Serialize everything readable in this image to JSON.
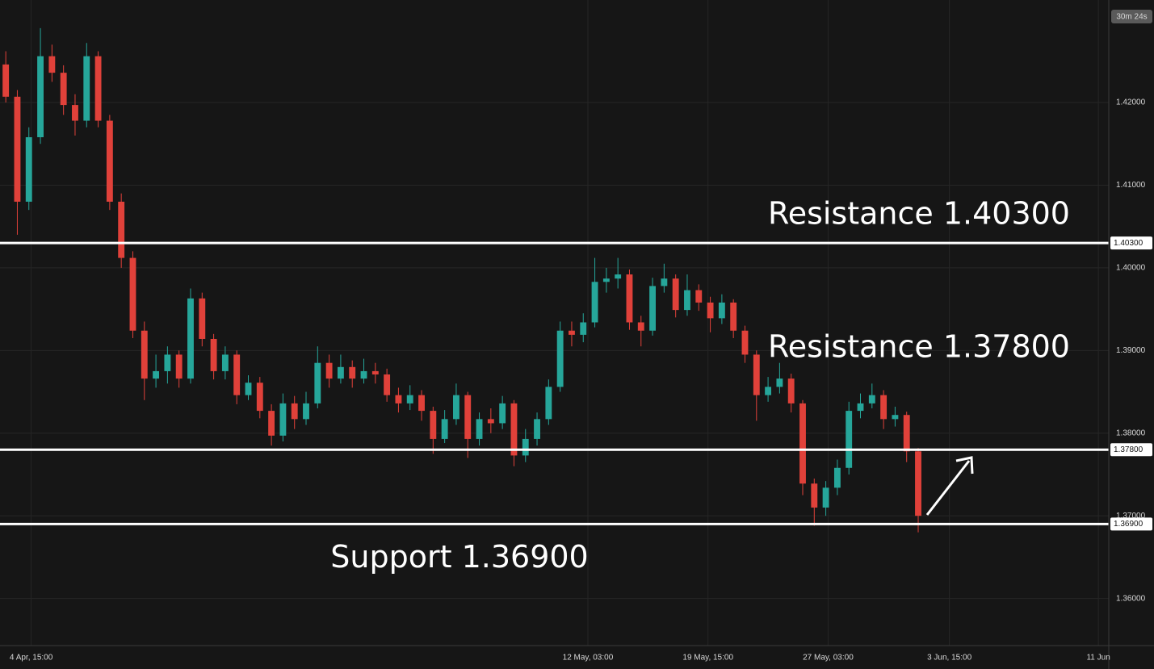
{
  "chart_data": {
    "type": "candlestick",
    "countdown": "30m 24s",
    "up_color": "#26a69a",
    "down_color": "#e0413a",
    "grid": true,
    "ylim": [
      1.3543,
      1.4324
    ],
    "yticks": [
      {
        "value": 1.36,
        "label": "1.36000"
      },
      {
        "value": 1.37,
        "label": "1.37000"
      },
      {
        "value": 1.38,
        "label": "1.38000"
      },
      {
        "value": 1.39,
        "label": "1.39000"
      },
      {
        "value": 1.4,
        "label": "1.40000"
      },
      {
        "value": 1.41,
        "label": "1.41000"
      },
      {
        "value": 1.42,
        "label": "1.42000"
      }
    ],
    "xlim": [
      -0.5,
      95.5
    ],
    "xticks": [
      {
        "value": 2.2,
        "label": "4 Apr, 15:00"
      },
      {
        "value": 50.4,
        "label": "12 May, 03:00"
      },
      {
        "value": 60.8,
        "label": "19 May, 15:00"
      },
      {
        "value": 71.2,
        "label": "27 May, 03:00"
      },
      {
        "value": 81.7,
        "label": "3 Jun, 15:00"
      },
      {
        "value": 94.6,
        "label": "11 Jun"
      }
    ],
    "levels": [
      {
        "value": 1.403,
        "label": "1.40300",
        "text": "Resistance 1.40300"
      },
      {
        "value": 1.378,
        "label": "1.37800",
        "text": "Resistance 1.37800"
      },
      {
        "value": 1.369,
        "label": "1.36900",
        "text": "Support 1.36900"
      }
    ],
    "ohlc": [
      [
        1.4246,
        1.4262,
        1.42,
        1.4207
      ],
      [
        1.4207,
        1.4215,
        1.404,
        1.408
      ],
      [
        1.408,
        1.417,
        1.407,
        1.4158
      ],
      [
        1.4158,
        1.429,
        1.415,
        1.4256
      ],
      [
        1.4256,
        1.427,
        1.4225,
        1.4236
      ],
      [
        1.4236,
        1.4245,
        1.4185,
        1.4197
      ],
      [
        1.4197,
        1.421,
        1.416,
        1.4178
      ],
      [
        1.4178,
        1.4272,
        1.417,
        1.4256
      ],
      [
        1.4256,
        1.4262,
        1.417,
        1.4178
      ],
      [
        1.4178,
        1.4185,
        1.407,
        1.408
      ],
      [
        1.408,
        1.409,
        1.4,
        1.4012
      ],
      [
        1.4012,
        1.402,
        1.3915,
        1.3924
      ],
      [
        1.3924,
        1.3935,
        1.384,
        1.3866
      ],
      [
        1.3866,
        1.3895,
        1.3855,
        1.3875
      ],
      [
        1.3875,
        1.3905,
        1.386,
        1.3895
      ],
      [
        1.3895,
        1.39,
        1.3855,
        1.3866
      ],
      [
        1.3866,
        1.3975,
        1.386,
        1.3963
      ],
      [
        1.3963,
        1.397,
        1.3905,
        1.3914
      ],
      [
        1.3914,
        1.392,
        1.3865,
        1.3875
      ],
      [
        1.3875,
        1.3905,
        1.3865,
        1.3895
      ],
      [
        1.3895,
        1.39,
        1.3835,
        1.3846
      ],
      [
        1.3846,
        1.387,
        1.384,
        1.3861
      ],
      [
        1.3861,
        1.3868,
        1.3818,
        1.3827
      ],
      [
        1.3827,
        1.3835,
        1.3785,
        1.3797
      ],
      [
        1.3797,
        1.3848,
        1.379,
        1.3836
      ],
      [
        1.3836,
        1.3845,
        1.3805,
        1.3817
      ],
      [
        1.3817,
        1.385,
        1.381,
        1.3836
      ],
      [
        1.3836,
        1.3905,
        1.383,
        1.3885
      ],
      [
        1.3885,
        1.3895,
        1.3855,
        1.3866
      ],
      [
        1.3866,
        1.3895,
        1.386,
        1.388
      ],
      [
        1.388,
        1.3888,
        1.3855,
        1.3866
      ],
      [
        1.3866,
        1.389,
        1.386,
        1.3875
      ],
      [
        1.3875,
        1.3885,
        1.386,
        1.3871
      ],
      [
        1.3871,
        1.3878,
        1.3838,
        1.3846
      ],
      [
        1.3846,
        1.3855,
        1.3825,
        1.3836
      ],
      [
        1.3836,
        1.3858,
        1.3828,
        1.3846
      ],
      [
        1.3846,
        1.3852,
        1.3815,
        1.3827
      ],
      [
        1.3827,
        1.3832,
        1.3775,
        1.3793
      ],
      [
        1.3793,
        1.3828,
        1.3788,
        1.3817
      ],
      [
        1.3817,
        1.386,
        1.381,
        1.3846
      ],
      [
        1.3846,
        1.385,
        1.377,
        1.3793
      ],
      [
        1.3793,
        1.3825,
        1.3785,
        1.3817
      ],
      [
        1.3817,
        1.383,
        1.38,
        1.3812
      ],
      [
        1.3812,
        1.3845,
        1.3805,
        1.3836
      ],
      [
        1.3836,
        1.384,
        1.376,
        1.3773
      ],
      [
        1.3773,
        1.3805,
        1.3765,
        1.3793
      ],
      [
        1.3793,
        1.3825,
        1.3785,
        1.3817
      ],
      [
        1.3817,
        1.3865,
        1.381,
        1.3856
      ],
      [
        1.3856,
        1.3935,
        1.385,
        1.3924
      ],
      [
        1.3924,
        1.3935,
        1.3905,
        1.3919
      ],
      [
        1.3919,
        1.3945,
        1.391,
        1.3934
      ],
      [
        1.3934,
        1.4012,
        1.3928,
        1.3983
      ],
      [
        1.3983,
        1.4,
        1.397,
        1.3987
      ],
      [
        1.3987,
        1.4012,
        1.3975,
        1.3992
      ],
      [
        1.3992,
        1.3998,
        1.3925,
        1.3934
      ],
      [
        1.3934,
        1.3942,
        1.3905,
        1.3924
      ],
      [
        1.3924,
        1.3988,
        1.3918,
        1.3978
      ],
      [
        1.3978,
        1.4005,
        1.397,
        1.3987
      ],
      [
        1.3987,
        1.3992,
        1.394,
        1.3949
      ],
      [
        1.3949,
        1.3992,
        1.3942,
        1.3973
      ],
      [
        1.3973,
        1.398,
        1.3948,
        1.3958
      ],
      [
        1.3958,
        1.3965,
        1.3922,
        1.3939
      ],
      [
        1.3939,
        1.3968,
        1.3932,
        1.3958
      ],
      [
        1.3958,
        1.3962,
        1.3915,
        1.3924
      ],
      [
        1.3924,
        1.393,
        1.3885,
        1.3895
      ],
      [
        1.3895,
        1.39,
        1.3815,
        1.3846
      ],
      [
        1.3846,
        1.3868,
        1.3838,
        1.3856
      ],
      [
        1.3856,
        1.3885,
        1.3848,
        1.3866
      ],
      [
        1.3866,
        1.3872,
        1.3825,
        1.3836
      ],
      [
        1.3836,
        1.384,
        1.3725,
        1.3739
      ],
      [
        1.3739,
        1.3745,
        1.3688,
        1.371
      ],
      [
        1.371,
        1.3742,
        1.37,
        1.3734
      ],
      [
        1.3734,
        1.3768,
        1.3725,
        1.3758
      ],
      [
        1.3758,
        1.3838,
        1.375,
        1.3827
      ],
      [
        1.3827,
        1.3848,
        1.3818,
        1.3836
      ],
      [
        1.3836,
        1.386,
        1.383,
        1.3846
      ],
      [
        1.3846,
        1.3852,
        1.3805,
        1.3817
      ],
      [
        1.3817,
        1.3832,
        1.3808,
        1.3822
      ],
      [
        1.3822,
        1.3826,
        1.3765,
        1.3778
      ],
      [
        1.3778,
        1.3782,
        1.368,
        1.37
      ]
    ]
  }
}
